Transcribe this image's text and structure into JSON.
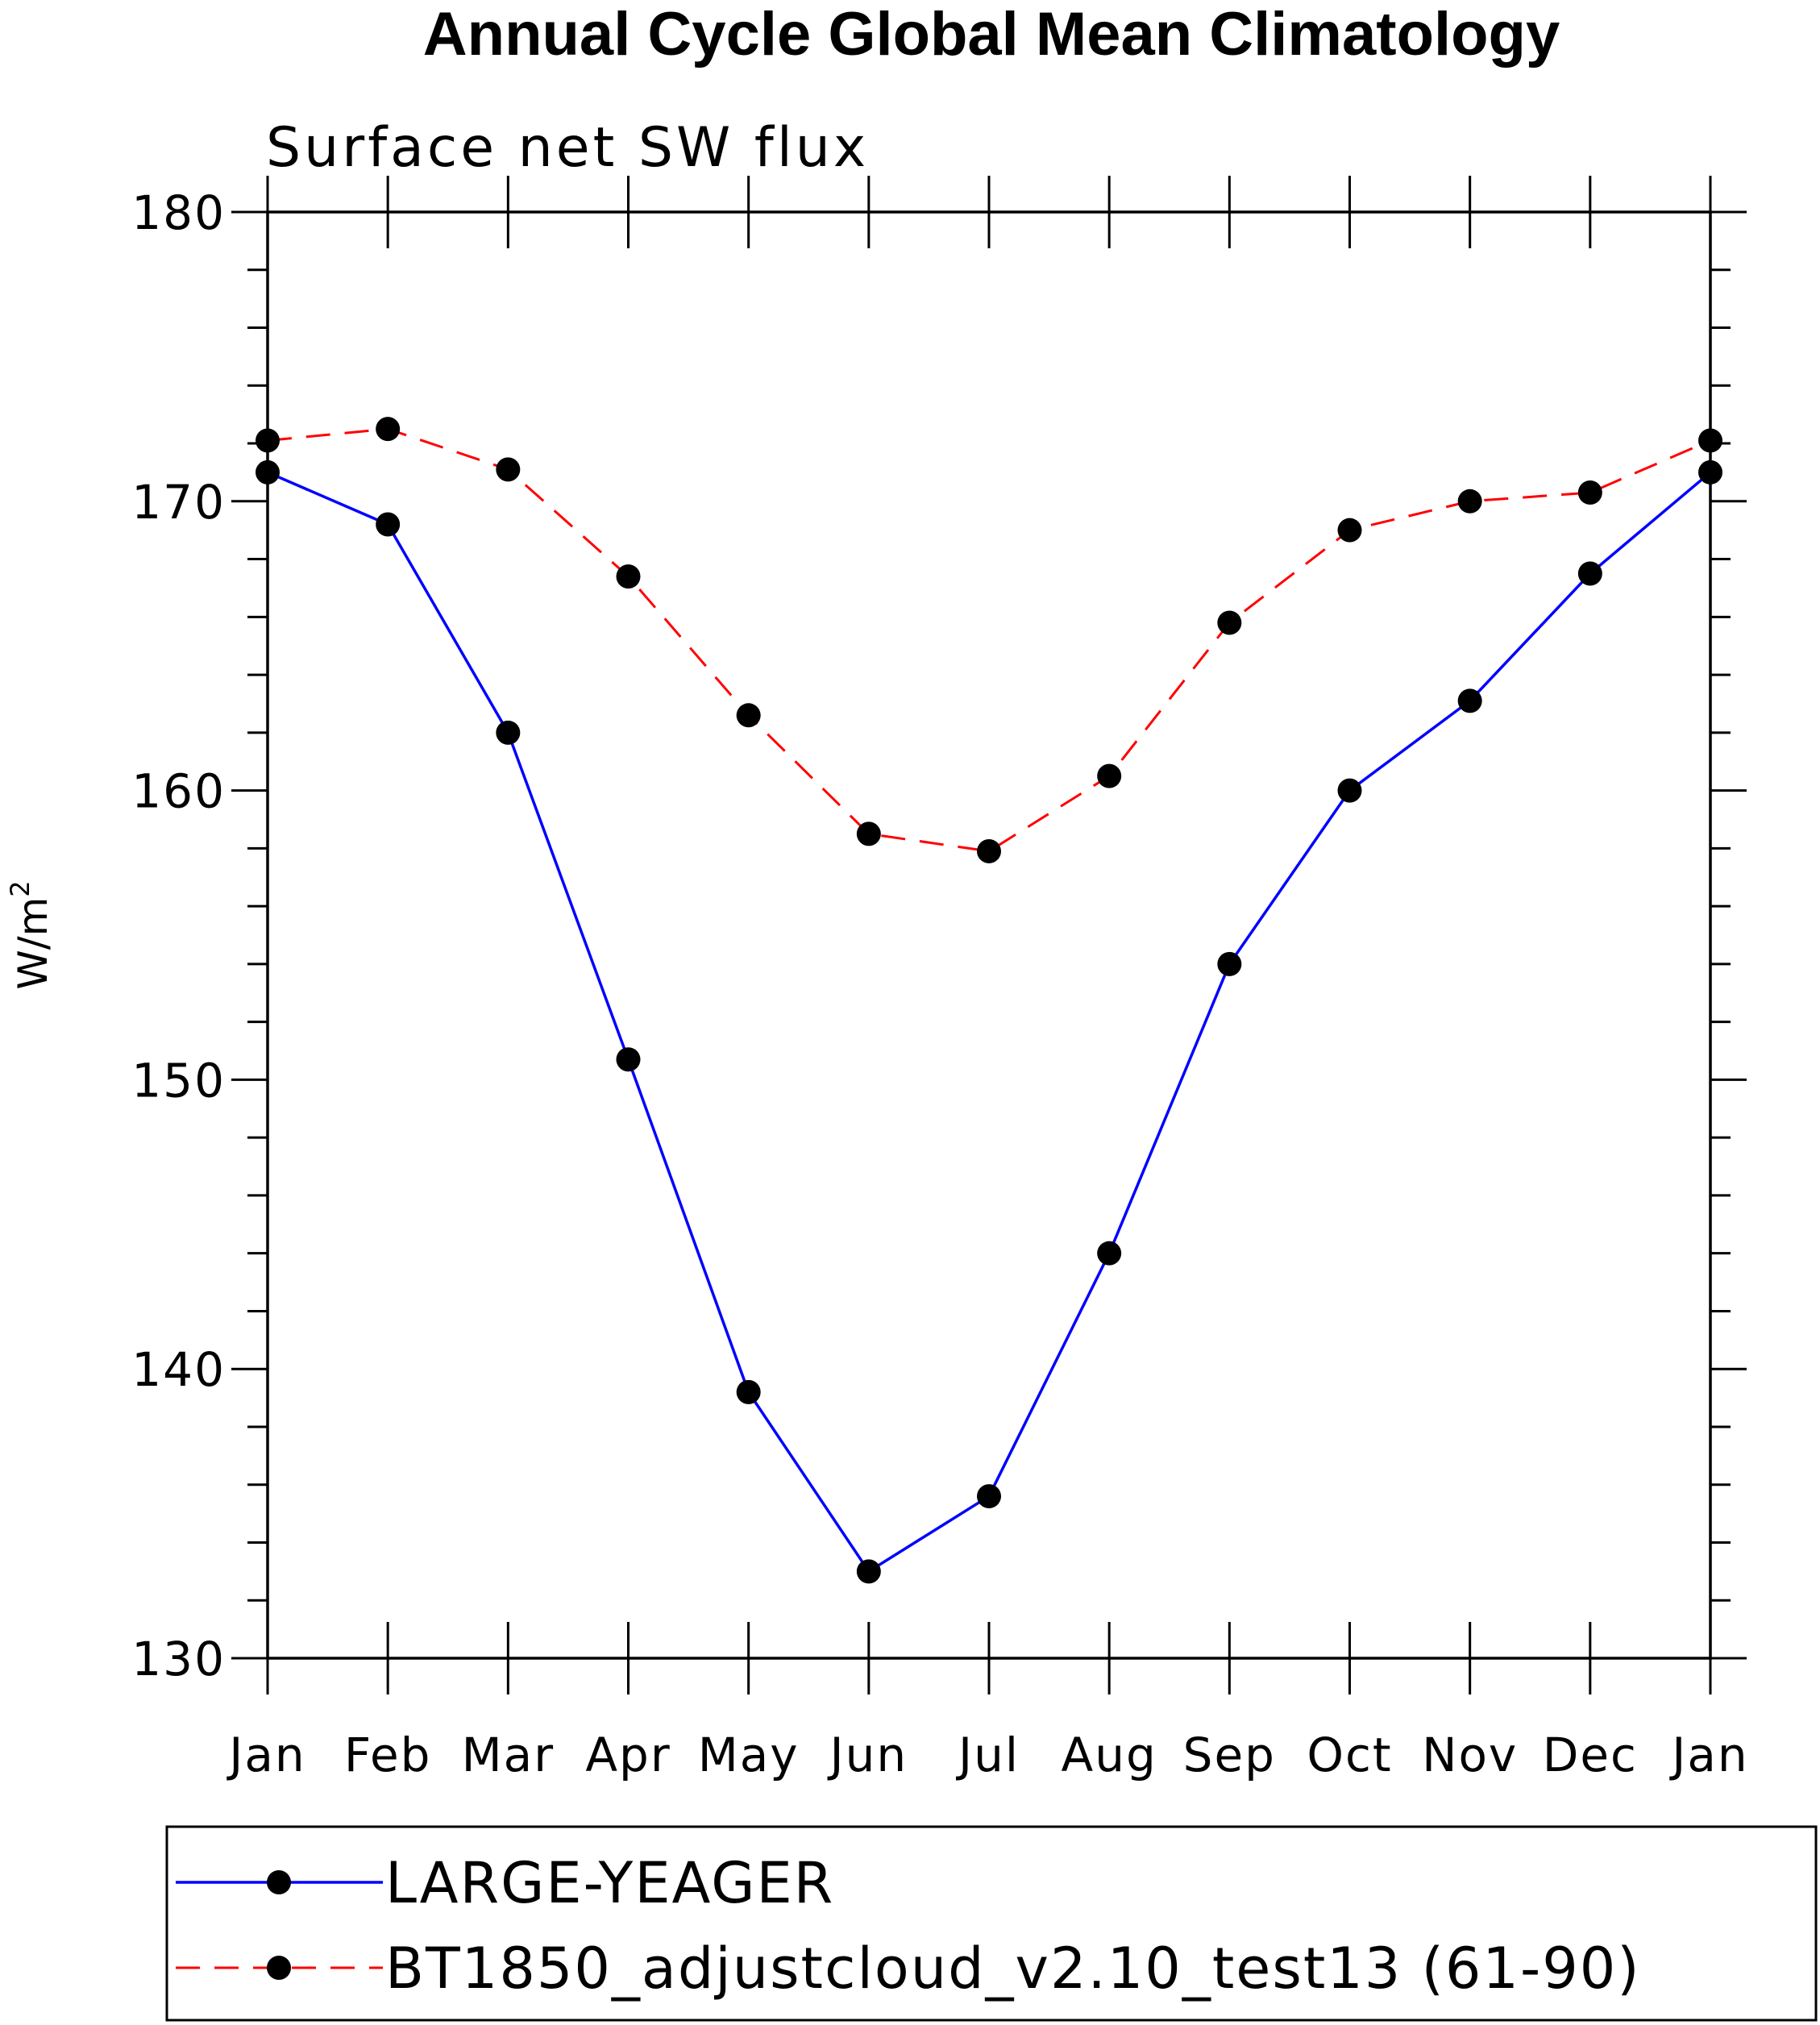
{
  "chart_data": {
    "type": "line",
    "title": "Annual Cycle Global Mean Climatology",
    "subtitle": "Surface net SW flux",
    "xlabel": "",
    "ylabel": "W/m",
    "ylabel_superscript": "2",
    "categories": [
      "Jan",
      "Feb",
      "Mar",
      "Apr",
      "May",
      "Jun",
      "Jul",
      "Aug",
      "Sep",
      "Oct",
      "Nov",
      "Dec",
      "Jan"
    ],
    "ylim": [
      130,
      180
    ],
    "yticks": [
      130,
      140,
      150,
      160,
      170,
      180
    ],
    "grid": false,
    "legend_position": "bottom",
    "series": [
      {
        "name": "LARGE-YEAGER",
        "color": "#0000ff",
        "dash": "solid",
        "marker": "filled-circle",
        "values": [
          171.0,
          169.2,
          162.0,
          150.7,
          139.2,
          133.0,
          135.6,
          144.0,
          154.0,
          160.0,
          163.1,
          167.5,
          171.0
        ]
      },
      {
        "name": "BT1850_adjustcloud_v2.10_test13 (61-90)",
        "color": "#ff0000",
        "dash": "dashed",
        "marker": "filled-circle",
        "values": [
          172.1,
          172.5,
          171.1,
          167.4,
          162.6,
          158.5,
          157.9,
          160.5,
          165.8,
          169.0,
          170.0,
          170.3,
          172.1
        ]
      }
    ]
  }
}
